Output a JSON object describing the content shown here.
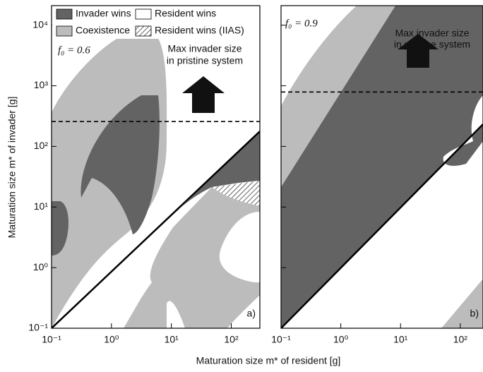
{
  "chart_data": [
    {
      "type": "region",
      "panel_label": "a)",
      "parameter": "f₀ = 0.6",
      "annotation": [
        "Max invader size",
        "in pristine system"
      ],
      "x_label": "Maturation size m* of resident [g]",
      "y_label": "Maturation size m* of invader [g]",
      "xlim": [
        0.1,
        300
      ],
      "ylim": [
        0.1,
        21000
      ],
      "log_scale": true,
      "xticks": [
        {
          "value": 0.1,
          "label": "10⁻¹"
        },
        {
          "value": 1,
          "label": "10⁰"
        },
        {
          "value": 10,
          "label": "10¹"
        },
        {
          "value": 100,
          "label": "10²"
        }
      ],
      "yticks": [
        {
          "value": 0.1,
          "label": "10⁻¹"
        },
        {
          "value": 1,
          "label": "10⁰"
        },
        {
          "value": 10,
          "label": "10¹"
        },
        {
          "value": 100,
          "label": "10²"
        },
        {
          "value": 1000,
          "label": "10³"
        },
        {
          "value": 10000,
          "label": "10⁴"
        }
      ],
      "max_invader_size": 257,
      "legend": [
        {
          "name": "Invader wins",
          "color": "#636363"
        },
        {
          "name": "Coexistence",
          "color": "#bcbcbc"
        },
        {
          "name": "Resident wins",
          "color": "#ffffff"
        },
        {
          "name": "Resident wins (IIAS)",
          "color": "hatch"
        }
      ]
    },
    {
      "type": "region",
      "panel_label": "b)",
      "parameter": "f₀ = 0.9",
      "annotation": [
        "Max invader size",
        "in pristine system"
      ],
      "xlim": [
        0.1,
        240
      ],
      "ylim": [
        0.1,
        21000
      ],
      "log_scale": true,
      "xticks": [
        {
          "value": 0.1,
          "label": "10⁻¹"
        },
        {
          "value": 1,
          "label": "10⁰"
        },
        {
          "value": 10,
          "label": "10¹"
        },
        {
          "value": 100,
          "label": "10²"
        }
      ],
      "yticks": [
        0.1,
        1,
        10,
        100,
        1000,
        10000
      ],
      "max_invader_size": 790
    }
  ]
}
